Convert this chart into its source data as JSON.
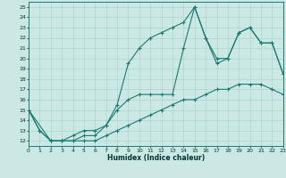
{
  "xlabel": "Humidex (Indice chaleur)",
  "xlim": [
    0,
    23
  ],
  "ylim": [
    11.5,
    25.5
  ],
  "xticks": [
    0,
    1,
    2,
    3,
    4,
    5,
    6,
    7,
    8,
    9,
    10,
    11,
    12,
    13,
    14,
    15,
    16,
    17,
    18,
    19,
    20,
    21,
    22,
    23
  ],
  "yticks": [
    12,
    13,
    14,
    15,
    16,
    17,
    18,
    19,
    20,
    21,
    22,
    23,
    24,
    25
  ],
  "background_color": "#cce8e5",
  "grid_color": "#aad4d0",
  "line_color": "#1a7a70",
  "series": [
    {
      "x": [
        0,
        1,
        2,
        3,
        4,
        5,
        6,
        7,
        8,
        9,
        10,
        11,
        12,
        13,
        14,
        15,
        16,
        17,
        18,
        19,
        20,
        21,
        22,
        23
      ],
      "y": [
        15,
        13,
        12,
        12,
        12,
        12,
        12,
        12.5,
        13,
        13.5,
        14,
        14.5,
        15,
        15.5,
        16,
        16,
        16.5,
        17,
        17,
        17.5,
        17.5,
        17.5,
        17,
        16.5
      ]
    },
    {
      "x": [
        0,
        1,
        2,
        3,
        4,
        5,
        6,
        7,
        8,
        9,
        10,
        11,
        12,
        13,
        14,
        15,
        16,
        17,
        18,
        19,
        20,
        21,
        22,
        23
      ],
      "y": [
        15,
        13,
        12,
        12,
        12.5,
        13,
        13,
        13.5,
        15,
        16,
        16.5,
        16.5,
        16.5,
        16.5,
        21,
        25,
        22,
        20,
        20,
        22.5,
        23,
        21.5,
        21.5,
        18.5
      ]
    },
    {
      "x": [
        0,
        2,
        3,
        4,
        5,
        6,
        7,
        8,
        9,
        10,
        11,
        12,
        13,
        14,
        15,
        16,
        17,
        18,
        19,
        20,
        21,
        22,
        23
      ],
      "y": [
        15,
        12,
        12,
        12,
        12.5,
        12.5,
        13.5,
        15.5,
        19.5,
        21,
        22,
        22.5,
        23,
        23.5,
        25,
        22,
        19.5,
        20,
        22.5,
        23,
        21.5,
        21.5,
        18.5
      ]
    }
  ]
}
